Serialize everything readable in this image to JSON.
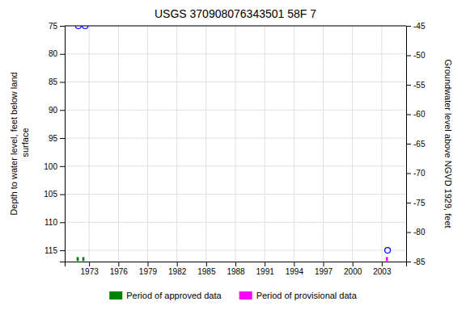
{
  "chart_data": {
    "type": "scatter",
    "title": "USGS 370908076343501 58F  7",
    "y_label": "Depth to water level, feet below land\n surface",
    "y2_label": "Groundwater level above NGVD 1929, feet",
    "xlim": [
      1970.5,
      2005.5
    ],
    "xticks": [
      1973,
      1976,
      1979,
      1982,
      1985,
      1988,
      1991,
      1994,
      1997,
      2000,
      2003
    ],
    "ylim": [
      117,
      75
    ],
    "yticks": [
      75,
      80,
      85,
      90,
      95,
      100,
      105,
      110,
      115
    ],
    "y2lim": [
      -85,
      -45
    ],
    "y2ticks": [
      -45,
      -50,
      -55,
      -60,
      -65,
      -70,
      -75,
      -80,
      -85
    ],
    "grid": true,
    "legend": "bottom",
    "series": [
      {
        "type": "scatter",
        "color": "#0000ff",
        "marker": "circle",
        "x": [
          1971.9,
          1972.6,
          2003.6
        ],
        "values": [
          75.0,
          75.0,
          115.0
        ]
      },
      {
        "name": "Period of approved data",
        "type": "bar",
        "color": "#008000",
        "x": [
          1971.72,
          1972.3
        ],
        "width": 0.22,
        "base": 116.2,
        "height": 0.7
      },
      {
        "name": "Period of provisional data",
        "type": "bar",
        "color": "#ff00ff",
        "x": [
          2003.42
        ],
        "width": 0.22,
        "base": 116.2,
        "height": 0.7
      }
    ]
  }
}
